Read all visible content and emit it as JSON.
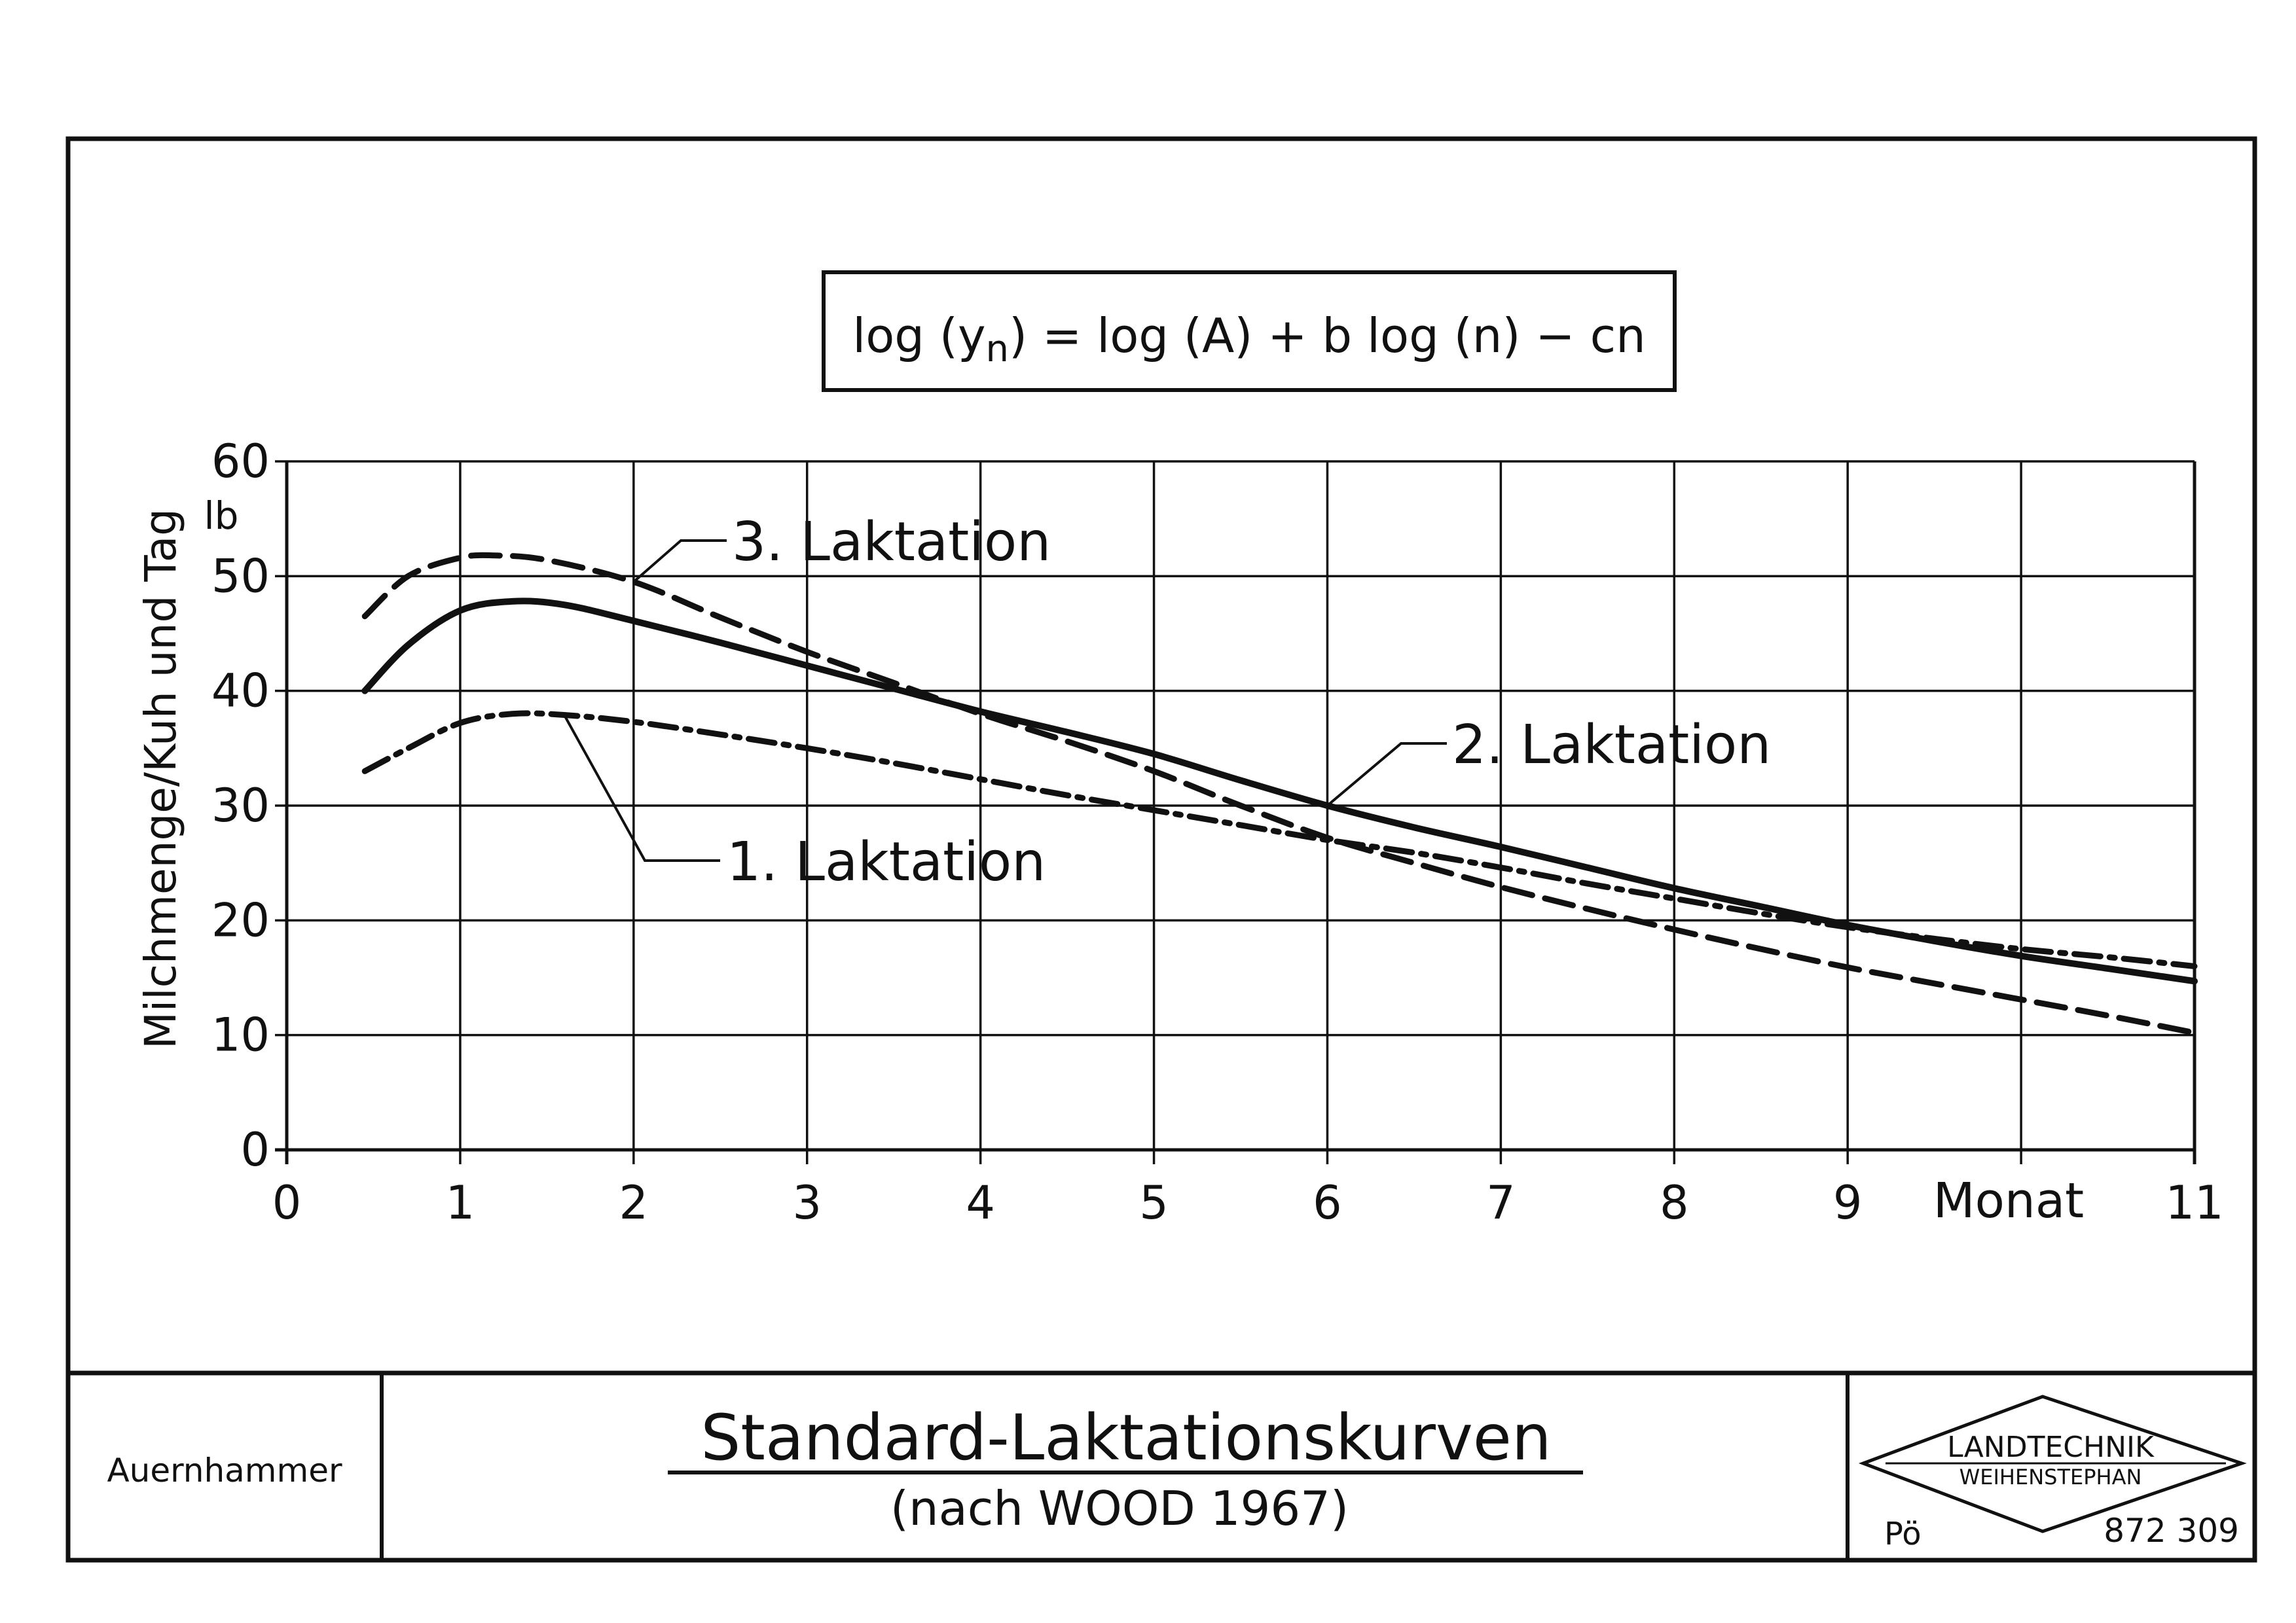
{
  "formula": {
    "parts": [
      "log (y",
      "n",
      ") = log (A) + b log (n) − cn"
    ]
  },
  "footer": {
    "author": "Auernhammer",
    "title": "Standard-Laktationskurven",
    "subtitle": "(nach WOOD 1967)",
    "logo_line1": "LANDTECHNIK",
    "logo_line2": "WEIHENSTEPHAN",
    "drawer": "Pö",
    "number": "872 309"
  },
  "chart_data": {
    "type": "line",
    "ylabel": "Milchmenge/Kuh und Tag",
    "yunit": "lb",
    "xunit_label": "Monat",
    "xlim": [
      0,
      11
    ],
    "ylim": [
      0,
      60
    ],
    "x_ticks": [
      "0",
      "1",
      "2",
      "3",
      "4",
      "5",
      "6",
      "7",
      "8",
      "9",
      "11"
    ],
    "y_ticks": [
      "0",
      "10",
      "20",
      "30",
      "40",
      "50",
      "60"
    ],
    "grid": true,
    "series": [
      {
        "name": "1. Laktation",
        "style": "dash-dot",
        "x": [
          0.45,
          0.7,
          1.0,
          1.3,
          1.6,
          2.0,
          2.5,
          3.0,
          3.5,
          4.0,
          4.5,
          5.0,
          5.5,
          6.0,
          6.5,
          7.0,
          7.5,
          8.0,
          8.5,
          9.0,
          9.5,
          10.0,
          10.5,
          11.0
        ],
        "y": [
          33,
          35,
          37.2,
          38,
          37.9,
          37.3,
          36.2,
          35,
          33.7,
          32.3,
          30.9,
          29.6,
          28.3,
          27,
          25.9,
          24.6,
          23.2,
          21.9,
          20.6,
          19.4,
          18.4,
          17.5,
          16.8,
          16
        ]
      },
      {
        "name": "2. Laktation",
        "style": "solid",
        "x": [
          0.45,
          0.7,
          1.0,
          1.3,
          1.6,
          2.0,
          2.5,
          3.0,
          3.5,
          4.0,
          4.5,
          5.0,
          5.5,
          6.0,
          6.5,
          7.0,
          7.5,
          8.0,
          8.5,
          9.0,
          9.5,
          10.0,
          10.5,
          11.0
        ],
        "y": [
          40,
          44,
          47,
          47.8,
          47.5,
          46.1,
          44.2,
          42.2,
          40.2,
          38.2,
          36.4,
          34.5,
          32.2,
          30,
          28.1,
          26.4,
          24.6,
          22.8,
          21.2,
          19.6,
          18.2,
          16.9,
          15.8,
          14.7
        ]
      },
      {
        "name": "3. Laktation",
        "style": "dashed",
        "x": [
          0.45,
          0.7,
          1.0,
          1.2,
          1.5,
          2.0,
          2.5,
          3.0,
          3.5,
          4.0,
          4.5,
          5.0,
          5.5,
          6.0,
          6.5,
          7.0,
          7.5,
          8.0,
          8.5,
          9.0,
          9.5,
          10.0,
          10.5,
          11.0
        ],
        "y": [
          46.5,
          50,
          51.6,
          51.8,
          51.4,
          49.5,
          46.4,
          43.4,
          40.7,
          38,
          35.6,
          33,
          30,
          27.2,
          25,
          22.9,
          21,
          19.2,
          17.5,
          15.9,
          14.5,
          13.1,
          11.7,
          10.2
        ]
      }
    ],
    "labels": [
      {
        "series": "1. Laktation",
        "text": "1. Laktation"
      },
      {
        "series": "2. Laktation",
        "text": "2. Laktation"
      },
      {
        "series": "3. Laktation",
        "text": "3. Laktation"
      }
    ]
  }
}
